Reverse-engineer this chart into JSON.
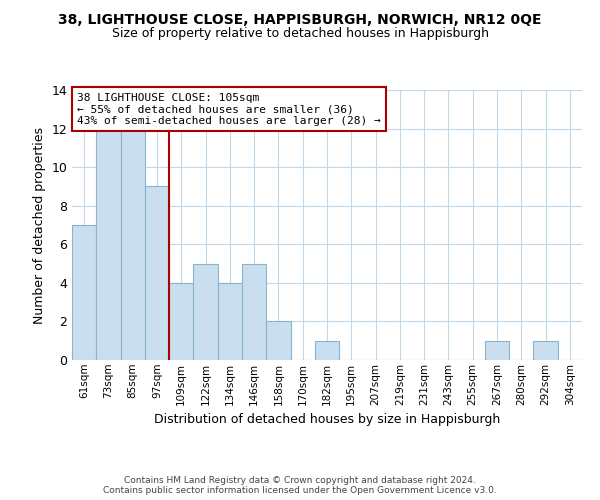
{
  "title": "38, LIGHTHOUSE CLOSE, HAPPISBURGH, NORWICH, NR12 0QE",
  "subtitle": "Size of property relative to detached houses in Happisburgh",
  "xlabel": "Distribution of detached houses by size in Happisburgh",
  "ylabel": "Number of detached properties",
  "bin_labels": [
    "61sqm",
    "73sqm",
    "85sqm",
    "97sqm",
    "109sqm",
    "122sqm",
    "134sqm",
    "146sqm",
    "158sqm",
    "170sqm",
    "182sqm",
    "195sqm",
    "207sqm",
    "219sqm",
    "231sqm",
    "243sqm",
    "255sqm",
    "267sqm",
    "280sqm",
    "292sqm",
    "304sqm"
  ],
  "bar_values": [
    7,
    12,
    12,
    9,
    4,
    5,
    4,
    5,
    2,
    0,
    1,
    0,
    0,
    0,
    0,
    0,
    0,
    1,
    0,
    1,
    0
  ],
  "bar_color": "#c9dff0",
  "bar_edge_color": "#8ab4cc",
  "vline_color": "#aa0000",
  "annotation_text": "38 LIGHTHOUSE CLOSE: 105sqm\n← 55% of detached houses are smaller (36)\n43% of semi-detached houses are larger (28) →",
  "annotation_box_color": "#ffffff",
  "annotation_box_edge": "#aa0000",
  "ylim": [
    0,
    14
  ],
  "yticks": [
    0,
    2,
    4,
    6,
    8,
    10,
    12,
    14
  ],
  "footer_line1": "Contains HM Land Registry data © Crown copyright and database right 2024.",
  "footer_line2": "Contains public sector information licensed under the Open Government Licence v3.0.",
  "bg_color": "#ffffff",
  "grid_color": "#c0d8e8"
}
